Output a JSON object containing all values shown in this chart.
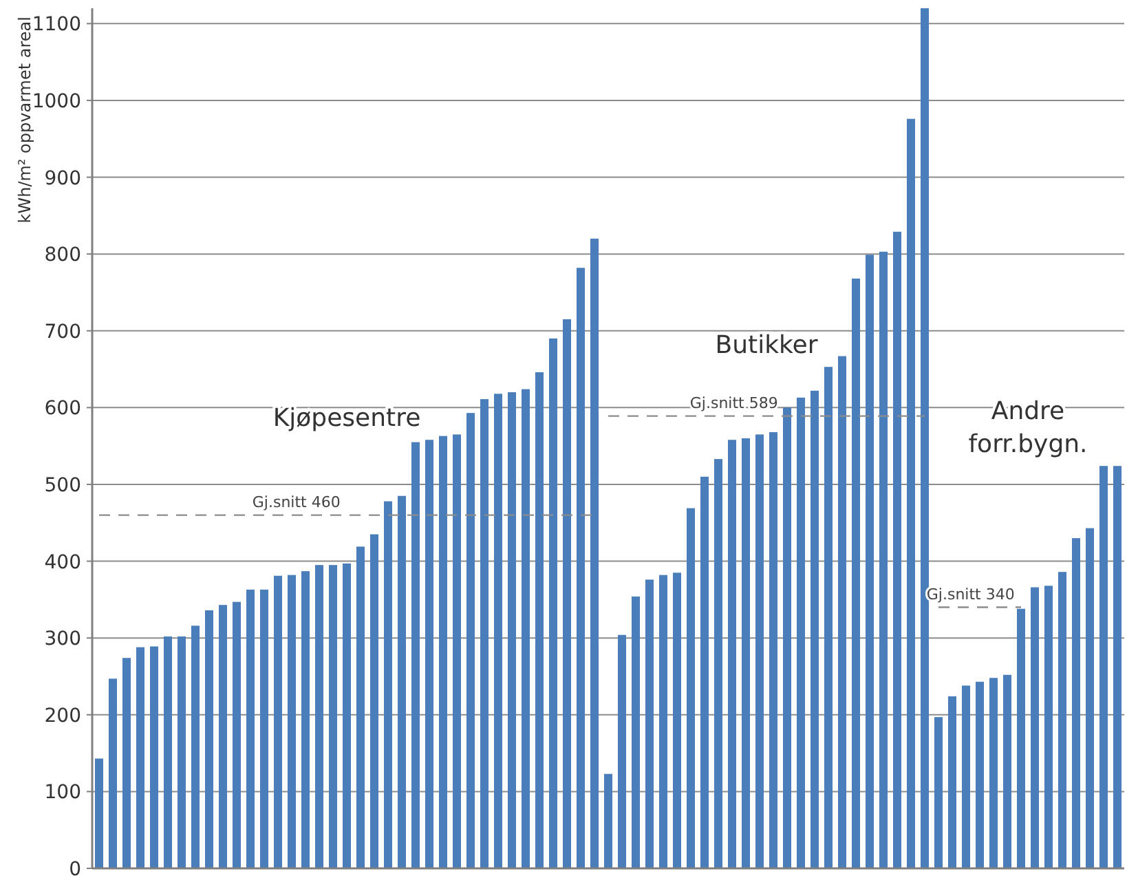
{
  "chart_data": {
    "type": "bar",
    "ylabel": "kWh/m² oppvarmet areal",
    "categories": [
      null,
      null,
      null,
      null,
      null,
      null,
      null,
      null,
      null,
      null,
      null,
      null,
      null,
      null,
      null,
      null,
      null,
      null,
      null,
      null,
      null,
      null,
      null,
      null,
      null,
      null,
      null,
      null,
      null,
      null,
      null,
      null,
      null,
      null,
      null,
      null,
      null,
      null,
      null,
      null,
      null,
      null,
      null,
      null,
      null,
      null,
      null,
      null,
      null,
      null,
      null,
      null,
      null,
      null,
      null,
      null,
      null,
      null,
      null,
      null,
      null,
      null,
      null,
      null,
      null,
      null,
      null,
      null,
      null,
      null,
      null,
      null,
      null,
      null,
      null
    ],
    "ylim": [
      0,
      1120
    ],
    "yticks": [
      0,
      100,
      200,
      300,
      400,
      500,
      600,
      700,
      800,
      900,
      1000,
      1100
    ],
    "grid": "y",
    "series": [
      {
        "name": "Kjøpesentre",
        "color": "#4a7ebb",
        "values": [
          143,
          247,
          274,
          288,
          289,
          302,
          302,
          316,
          336,
          343,
          347,
          363,
          363,
          381,
          382,
          387,
          395,
          395,
          397,
          419,
          435,
          478,
          485,
          555,
          558,
          563,
          565,
          593,
          611,
          618,
          620,
          624,
          646,
          690,
          715,
          782,
          820,
          null,
          null,
          null,
          null,
          null,
          null,
          null,
          null,
          null,
          null,
          null,
          null,
          null,
          null,
          null,
          null,
          null,
          null,
          null,
          null,
          null,
          null,
          null,
          null,
          null,
          null,
          null,
          null,
          null,
          null,
          null,
          null,
          null,
          null,
          null,
          null,
          null,
          null
        ]
      },
      {
        "name": "Butikker",
        "color": "#4a7ebb",
        "values": [
          null,
          null,
          null,
          null,
          null,
          null,
          null,
          null,
          null,
          null,
          null,
          null,
          null,
          null,
          null,
          null,
          null,
          null,
          null,
          null,
          null,
          null,
          null,
          null,
          null,
          null,
          null,
          null,
          null,
          null,
          null,
          null,
          null,
          null,
          null,
          null,
          null,
          123,
          304,
          354,
          376,
          382,
          385,
          469,
          510,
          533,
          558,
          560,
          565,
          568,
          600,
          613,
          622,
          653,
          667,
          768,
          799,
          803,
          829,
          976,
          1120,
          null,
          null,
          null,
          null,
          null,
          null,
          null,
          null,
          null,
          null,
          null,
          null,
          null,
          null
        ]
      },
      {
        "name": "Andre forr.bygn.",
        "color": "#4a7ebb",
        "values": [
          null,
          null,
          null,
          null,
          null,
          null,
          null,
          null,
          null,
          null,
          null,
          null,
          null,
          null,
          null,
          null,
          null,
          null,
          null,
          null,
          null,
          null,
          null,
          null,
          null,
          null,
          null,
          null,
          null,
          null,
          null,
          null,
          null,
          null,
          null,
          null,
          null,
          null,
          null,
          null,
          null,
          null,
          null,
          null,
          null,
          null,
          null,
          null,
          null,
          null,
          null,
          null,
          null,
          null,
          null,
          null,
          null,
          null,
          null,
          null,
          null,
          197,
          224,
          238,
          243,
          248,
          252,
          338,
          366,
          368,
          386,
          430,
          443,
          524,
          524
        ]
      },
      {
        "name": "Gj.snitt 460",
        "type": "line",
        "line_style": "dashed",
        "color": "#8c8c8c",
        "values": [
          460,
          460,
          460,
          460,
          460,
          460,
          460,
          460,
          460,
          460,
          460,
          460,
          460,
          460,
          460,
          460,
          460,
          460,
          460,
          460,
          460,
          460,
          460,
          460,
          460,
          460,
          460,
          460,
          460,
          460,
          460,
          460,
          460,
          460,
          460,
          460,
          460,
          null,
          null,
          null,
          null,
          null,
          null,
          null,
          null,
          null,
          null,
          null,
          null,
          null,
          null,
          null,
          null,
          null,
          null,
          null,
          null,
          null,
          null,
          null,
          null,
          null,
          null,
          null,
          null,
          null,
          null,
          null,
          null,
          null,
          null,
          null,
          null,
          null,
          null
        ]
      },
      {
        "name": "Gj.snitt 589",
        "type": "line",
        "line_style": "dashed",
        "color": "#8c8c8c",
        "values": [
          null,
          null,
          null,
          null,
          null,
          null,
          null,
          null,
          null,
          null,
          null,
          null,
          null,
          null,
          null,
          null,
          null,
          null,
          null,
          null,
          null,
          null,
          null,
          null,
          null,
          null,
          null,
          null,
          null,
          null,
          null,
          null,
          null,
          null,
          null,
          null,
          null,
          589,
          589,
          589,
          589,
          589,
          589,
          589,
          589,
          589,
          589,
          589,
          589,
          589,
          589,
          589,
          589,
          589,
          589,
          589,
          589,
          589,
          589,
          589,
          589,
          null,
          null,
          null,
          null,
          null,
          null,
          null,
          null,
          null,
          null,
          null,
          null,
          null,
          null
        ]
      },
      {
        "name": "Gj.snitt 340",
        "type": "line",
        "line_style": "dashed",
        "color": "#8c8c8c",
        "values": [
          null,
          null,
          null,
          null,
          null,
          null,
          null,
          null,
          null,
          null,
          null,
          null,
          null,
          null,
          null,
          null,
          null,
          null,
          null,
          null,
          null,
          null,
          null,
          null,
          null,
          null,
          null,
          null,
          null,
          null,
          null,
          null,
          null,
          null,
          null,
          null,
          null,
          null,
          null,
          null,
          null,
          null,
          null,
          null,
          null,
          null,
          null,
          null,
          null,
          null,
          null,
          null,
          null,
          null,
          null,
          null,
          null,
          null,
          null,
          null,
          null,
          340,
          340,
          340,
          340,
          340,
          340,
          340,
          null,
          null,
          null,
          null,
          null,
          null,
          null
        ]
      }
    ]
  }
}
